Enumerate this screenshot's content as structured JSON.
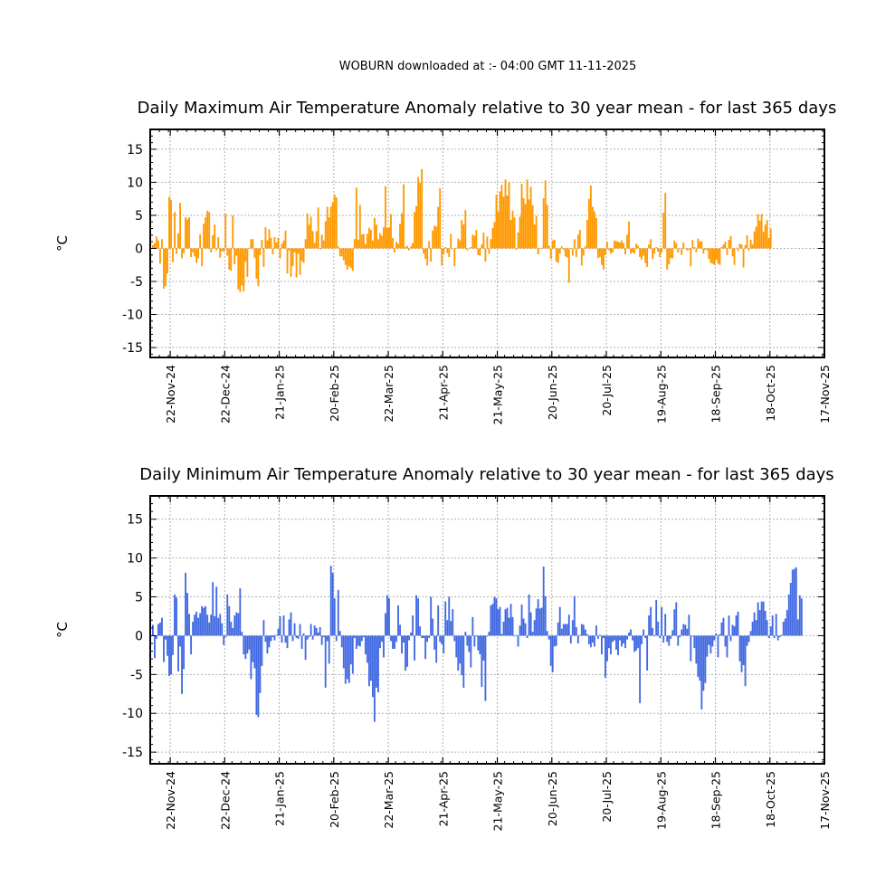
{
  "header": "WOBURN downloaded at :- 04:00 GMT 11-11-2025",
  "colors": {
    "max_bars": "#ff9900",
    "min_bars": "#4169e1",
    "grid": "#b0b0b0"
  },
  "chart_data": [
    {
      "type": "bar",
      "title": "Daily Maximum Air Temperature Anomaly relative to 30 year mean - for last 365 days",
      "xlabel": "",
      "ylabel": "°C",
      "ylim": [
        -16.5,
        18
      ],
      "yticks": [
        -15,
        -10,
        -5,
        0,
        5,
        10,
        15
      ],
      "x_start": "2024-11-11",
      "x_end": "2025-11-17",
      "xtick_labels": [
        "22-Nov-24",
        "22-Dec-24",
        "21-Jan-25",
        "20-Feb-25",
        "22-Mar-25",
        "21-Apr-25",
        "21-May-25",
        "20-Jun-25",
        "20-Jul-25",
        "19-Aug-25",
        "18-Sep-25",
        "18-Oct-25",
        "17-Nov-25"
      ],
      "grid": true,
      "series": [
        {
          "values": [
            0.5,
            0.8,
            1.8,
            1.2,
            -2.3,
            1.4,
            -6.1,
            -5.7,
            -3.8,
            7.8,
            7.3,
            -2.1,
            5.5,
            -0.8,
            2.3,
            6.9,
            -1.5,
            -0.7,
            4.7,
            4.4,
            4.7,
            -1.3,
            -0.6,
            -1.2,
            -2.2,
            -1.5,
            2.1,
            -2.7,
            3.7,
            4.7,
            5.7,
            5.5,
            -0.6,
            2.0,
            3.6,
            -0.3,
            1.7,
            -1.4,
            -0.4,
            -0.5,
            5.2,
            -1.1,
            -3.2,
            -3.4,
            5.0,
            -2.4,
            -1.1,
            -6.2,
            -6.6,
            -5.6,
            -6.5,
            -2.0,
            -4.3,
            0.1,
            1.4,
            1.4,
            -1.4,
            -4.6,
            -5.7,
            -1.0,
            1.3,
            -2.8,
            3.2,
            1.2,
            2.9,
            1.6,
            -0.9,
            1.7,
            0.9,
            1.6,
            -1.5,
            0.7,
            1.2,
            2.7,
            -3.8,
            -0.3,
            -4.3,
            -2.7,
            -0.6,
            -4.4,
            -0.8,
            -4.0,
            -1.9,
            -2.2,
            1.4,
            5.3,
            3.6,
            4.8,
            2.6,
            0.8,
            2.6,
            6.2,
            -0.2,
            2.1,
            1.2,
            4.1,
            6.3,
            4.7,
            6.3,
            7.0,
            8.1,
            7.7,
            0.3,
            -1.2,
            -1.2,
            -1.8,
            -2.5,
            -3.2,
            -2.7,
            -3.0,
            -3.4,
            1.4,
            9.2,
            1.3,
            6.6,
            2.1,
            2.2,
            0.7,
            2.2,
            3.1,
            2.8,
            1.2,
            4.6,
            3.6,
            1.4,
            2.3,
            1.9,
            3.2,
            9.4,
            3.1,
            3.2,
            5.2,
            1.6,
            -0.6,
            1.0,
            0.7,
            3.7,
            5.3,
            9.7,
            0.2,
            0.4,
            -0.3,
            0.3,
            0.8,
            5.5,
            6.4,
            10.8,
            9.9,
            12.0,
            -0.8,
            -1.6,
            -2.6,
            1.1,
            -2.0,
            2.7,
            3.4,
            3.3,
            6.3,
            9.1,
            -2.6,
            -0.9,
            0.2,
            -0.7,
            -1.3,
            2.2,
            -0.1,
            -2.7,
            0.1,
            1.5,
            1.2,
            4.3,
            3.6,
            5.8,
            -0.3,
            0.0,
            0.2,
            2.1,
            1.9,
            2.8,
            -1.0,
            -1.1,
            0.6,
            2.4,
            -2.0,
            1.8,
            -0.8,
            1.4,
            3.1,
            4.0,
            8.1,
            5.6,
            8.6,
            9.6,
            7.8,
            10.4,
            8.0,
            10.0,
            4.3,
            5.7,
            4.7,
            -0.2,
            2.4,
            4.8,
            9.8,
            7.6,
            6.7,
            10.4,
            7.4,
            9.3,
            6.5,
            3.6,
            4.9,
            -0.9,
            -0.1,
            0.1,
            7.6,
            10.3,
            6.6,
            0.4,
            -1.6,
            1.2,
            1.3,
            -2.0,
            -2.2,
            -0.8,
            0.3,
            -0.2,
            -1.2,
            -1.4,
            -5.2,
            0.1,
            -1.1,
            1.4,
            -1.3,
            2.1,
            2.8,
            -2.6,
            -1.1,
            0.3,
            4.3,
            7.5,
            9.5,
            6.3,
            5.6,
            4.6,
            -1.5,
            -1.3,
            -2.5,
            -3.2,
            -1.0,
            1.0,
            -0.3,
            -0.8,
            -0.6,
            1.2,
            1.1,
            1.0,
            0.9,
            1.2,
            0.8,
            -0.9,
            2.1,
            4.1,
            -0.8,
            -0.6,
            -0.8,
            0.7,
            0.4,
            -1.3,
            -1.7,
            -1.1,
            -2.2,
            -2.8,
            0.6,
            1.4,
            -1.6,
            -0.8,
            0.2,
            -0.5,
            -1.3,
            -0.6,
            5.4,
            8.4,
            -3.2,
            -2.4,
            -1.5,
            -1.5,
            1.2,
            0.8,
            -0.6,
            0.0,
            -1.0,
            0.9,
            -0.1,
            -0.3,
            -0.2,
            -2.7,
            1.3,
            0.2,
            -0.6,
            1.5,
            1.0,
            1.1,
            -0.8,
            -0.2,
            -0.3,
            -1.6,
            -2.2,
            -2.3,
            -2.5,
            -1.7,
            -2.3,
            -2.5,
            0.2,
            0.6,
            1.0,
            -1.0,
            1.3,
            1.9,
            -1.2,
            -2.5,
            0.1,
            -0.4,
            0.7,
            0.6,
            -2.9,
            0.5,
            2.0,
            -0.3,
            1.3,
            0.6,
            2.6,
            3.3,
            5.2,
            4.2,
            5.2,
            2.5,
            3.6,
            4.3,
            1.6,
            3.0
          ]
        }
      ]
    },
    {
      "type": "bar",
      "title": "Daily Minimum Air Temperature Anomaly relative to 30 year mean - for last 365 days",
      "xlabel": "",
      "ylabel": "°C",
      "ylim": [
        -16.5,
        18
      ],
      "yticks": [
        -15,
        -10,
        -5,
        0,
        5,
        10,
        15
      ],
      "x_start": "2024-11-11",
      "x_end": "2025-11-17",
      "xtick_labels": [
        "22-Nov-24",
        "22-Dec-24",
        "21-Jan-25",
        "20-Feb-25",
        "22-Mar-25",
        "21-Apr-25",
        "21-May-25",
        "20-Jun-25",
        "20-Jul-25",
        "19-Aug-25",
        "18-Sep-25",
        "18-Oct-25",
        "17-Nov-25"
      ],
      "grid": true,
      "series": [
        {
          "values": [
            1.4,
            -2.9,
            -0.4,
            1.5,
            1.7,
            2.3,
            -3.4,
            -0.5,
            -2.6,
            -5.2,
            -5.0,
            -2.5,
            5.3,
            4.9,
            -4.6,
            -1.4,
            -7.5,
            -4.3,
            8.1,
            5.5,
            2.8,
            -2.4,
            1.8,
            2.7,
            3.1,
            2.3,
            2.9,
            3.8,
            3.6,
            3.8,
            2.7,
            1.7,
            2.7,
            6.9,
            2.5,
            6.3,
            2.3,
            2.8,
            1.6,
            -1.2,
            -0.2,
            5.3,
            3.8,
            1.8,
            1.0,
            2.6,
            3.0,
            2.9,
            6.1,
            0.5,
            -2.4,
            -3.0,
            -2.3,
            -1.8,
            -5.6,
            -3.4,
            -4.2,
            -10.2,
            -10.5,
            -7.4,
            -3.9,
            2.0,
            -0.8,
            -2.3,
            -1.5,
            -0.7,
            -0.2,
            -0.6,
            0.1,
            0.9,
            2.5,
            -0.9,
            2.6,
            -0.9,
            -1.6,
            2.1,
            3.0,
            -0.7,
            1.6,
            -0.3,
            -0.4,
            1.5,
            -1.7,
            0.3,
            -3.1,
            -0.5,
            -0.2,
            1.5,
            -0.5,
            1.3,
            1.0,
            0.4,
            1.1,
            -1.2,
            -0.2,
            -6.7,
            -0.7,
            -3.6,
            9.0,
            8.1,
            4.8,
            -0.7,
            5.9,
            0.6,
            -1.5,
            -4.2,
            -6.2,
            -5.6,
            -6.1,
            -3.7,
            -4.9,
            -0.3,
            -1.7,
            -1.3,
            -1.4,
            -0.7,
            -0.2,
            -2.4,
            -3.5,
            -6.5,
            -5.8,
            -7.9,
            -11.1,
            -6.7,
            -7.3,
            -1.6,
            -0.8,
            -2.8,
            2.9,
            5.2,
            4.8,
            -0.7,
            -1.7,
            -1.7,
            -0.8,
            3.9,
            1.4,
            -2.3,
            -0.9,
            -4.5,
            -4.0,
            -0.6,
            0.4,
            2.6,
            -3.2,
            5.2,
            4.8,
            1.2,
            -0.3,
            -0.3,
            -3.0,
            -0.8,
            -0.3,
            5.0,
            2.2,
            -1.8,
            -3.5,
            3.9,
            -0.8,
            -1.1,
            -2.3,
            4.4,
            2.0,
            5.0,
            1.9,
            3.4,
            -0.7,
            -2.8,
            -4.5,
            -3.6,
            -5.1,
            -6.7,
            0.5,
            -1.3,
            -2.1,
            -4.1,
            2.4,
            -1.4,
            -0.1,
            -1.9,
            -2.4,
            -6.6,
            -3.2,
            -8.4,
            -0.1,
            0.5,
            3.9,
            4.1,
            5.0,
            4.8,
            3.4,
            3.7,
            0.2,
            1.8,
            3.4,
            3.6,
            2.3,
            4.1,
            2.4,
            -0.1,
            0.1,
            -1.4,
            1.3,
            4.0,
            2.2,
            1.6,
            -0.3,
            5.3,
            3.0,
            0.5,
            2.0,
            3.5,
            4.7,
            3.5,
            3.6,
            8.9,
            5.1,
            0.6,
            -0.5,
            -3.9,
            -4.7,
            -1.4,
            -1.3,
            1.7,
            3.7,
            0.9,
            1.5,
            1.5,
            1.5,
            2.7,
            -1.0,
            2.0,
            5.1,
            1.1,
            -1.0,
            0.1,
            1.5,
            1.4,
            0.8,
            0.2,
            -1.1,
            -1.5,
            -0.9,
            -1.4,
            1.3,
            -0.4,
            0.1,
            -2.4,
            -0.3,
            -5.4,
            -3.3,
            -1.6,
            -2.4,
            -0.8,
            -0.6,
            -1.8,
            -2.5,
            -0.6,
            -1.4,
            -1.0,
            -1.6,
            -0.5,
            0.4,
            0.8,
            -0.6,
            -2.1,
            -1.9,
            -1.6,
            -8.7,
            -1.1,
            0.8,
            -0.3,
            -4.5,
            2.6,
            3.7,
            1.0,
            -0.1,
            4.6,
            1.8,
            -0.3,
            3.7,
            -0.9,
            2.8,
            -0.8,
            -1.3,
            -0.4,
            0.7,
            3.4,
            4.3,
            -1.3,
            -0.2,
            0.8,
            1.5,
            1.4,
            0.9,
            2.7,
            -3.3,
            -0.1,
            -1.6,
            -3.6,
            -5.3,
            -5.8,
            -9.5,
            -7.1,
            -6.1,
            -2.7,
            -1.2,
            -2.3,
            -1.4,
            -0.6,
            0.3,
            -2.8,
            0.2,
            1.7,
            2.3,
            -1.4,
            -2.8,
            2.6,
            -0.7,
            1.4,
            1.2,
            2.6,
            3.1,
            -3.3,
            -4.7,
            -3.8,
            -6.5,
            -1.3,
            -0.8,
            0.6,
            1.8,
            3.0,
            2.0,
            4.3,
            3.3,
            4.4,
            4.4,
            3.2,
            2.0,
            -0.3,
            1.2,
            2.6,
            -0.3,
            2.8,
            -0.6,
            -0.2,
            0.1,
            1.8,
            2.2,
            3.3,
            5.3,
            6.8,
            8.5,
            8.6,
            8.8,
            2.1,
            5.2,
            4.8
          ]
        }
      ]
    }
  ]
}
